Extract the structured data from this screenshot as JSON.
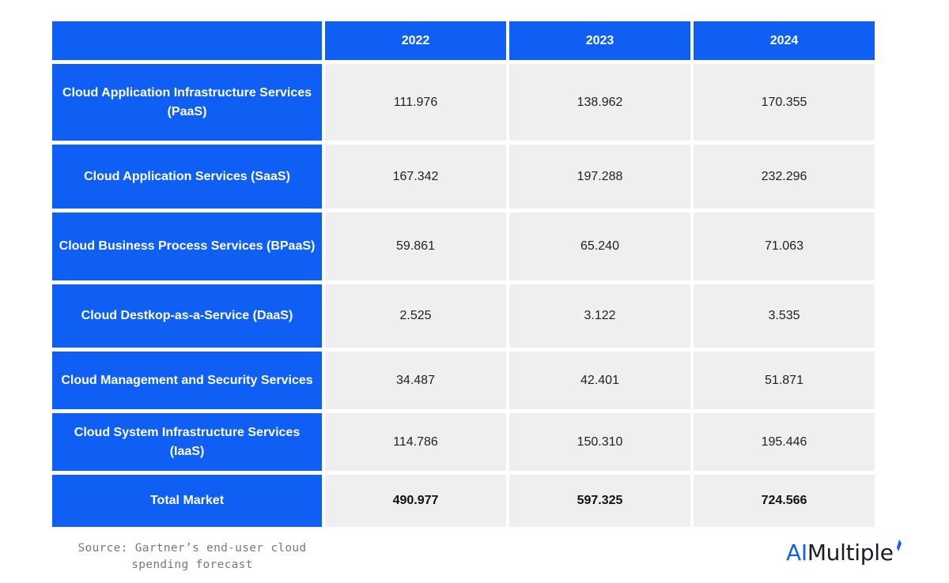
{
  "chart_data": {
    "type": "table",
    "columns": [
      "",
      "2022",
      "2023",
      "2024"
    ],
    "rows": [
      {
        "label": "Cloud Application Infrastructure Services (PaaS)",
        "values": [
          "111.976",
          "138.962",
          "170.355"
        ]
      },
      {
        "label": "Cloud Application Services (SaaS)",
        "values": [
          "167.342",
          "197.288",
          "232.296"
        ]
      },
      {
        "label": "Cloud Business Process Services (BPaaS)",
        "values": [
          "59.861",
          "65.240",
          "71.063"
        ]
      },
      {
        "label": "Cloud Destkop-as-a-Service (DaaS)",
        "values": [
          "2.525",
          "3.122",
          "3.535"
        ]
      },
      {
        "label": "Cloud Management and Security Services",
        "values": [
          "34.487",
          "42.401",
          "51.871"
        ]
      },
      {
        "label": "Cloud System Infrastructure Services (IaaS)",
        "values": [
          "114.786",
          "150.310",
          "195.446"
        ]
      },
      {
        "label": "Total Market",
        "values": [
          "490.977",
          "597.325",
          "724.566"
        ],
        "bold": true
      }
    ]
  },
  "source": "Source: Gartner’s end-user cloud spending forecast",
  "logo": {
    "ai": "AI",
    "rest": "Multiple",
    "icon": "logo-spark-icon"
  },
  "colors": {
    "header_blue": "#0f5ff5",
    "cell_gray": "#efefef",
    "logo_text": "#1b1b2a"
  }
}
